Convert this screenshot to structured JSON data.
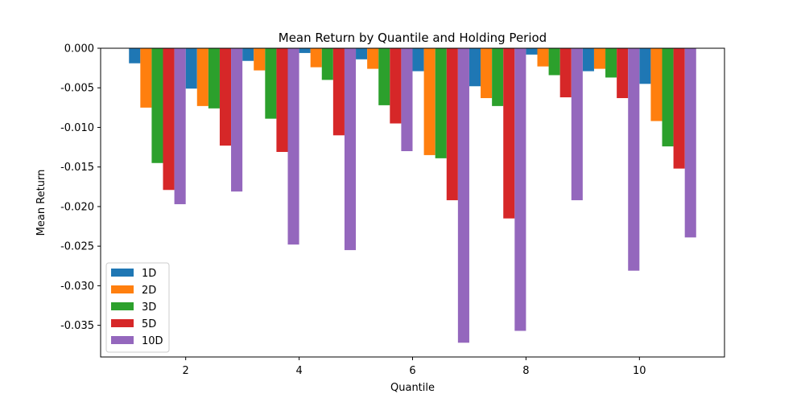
{
  "chart_data": {
    "type": "bar",
    "title": "Mean Return by Quantile and Holding Period",
    "xlabel": "Quantile",
    "ylabel": "Mean Return",
    "categories": [
      1,
      2,
      3,
      4,
      5,
      6,
      7,
      8,
      9,
      10
    ],
    "xlim": [
      0.5,
      11.5
    ],
    "ylim": [
      -0.039,
      0.0
    ],
    "xticks": [
      {
        "value": 2,
        "label": "2"
      },
      {
        "value": 4,
        "label": "4"
      },
      {
        "value": 6,
        "label": "6"
      },
      {
        "value": 8,
        "label": "8"
      },
      {
        "value": 10,
        "label": "10"
      }
    ],
    "yticks": [
      {
        "value": 0.0,
        "label": "0.000"
      },
      {
        "value": -0.005,
        "label": "-0.005"
      },
      {
        "value": -0.01,
        "label": "-0.010"
      },
      {
        "value": -0.015,
        "label": "-0.015"
      },
      {
        "value": -0.02,
        "label": "-0.020"
      },
      {
        "value": -0.025,
        "label": "-0.025"
      },
      {
        "value": -0.03,
        "label": "-0.030"
      },
      {
        "value": -0.035,
        "label": "-0.035"
      }
    ],
    "grid": false,
    "legend_position": "lower-left",
    "series": [
      {
        "name": "1D",
        "color": "#1f77b4",
        "values": [
          -0.0019,
          -0.0051,
          -0.0016,
          -0.0006,
          -0.0014,
          -0.0029,
          -0.0048,
          -0.0008,
          -0.0029,
          -0.0045
        ]
      },
      {
        "name": "2D",
        "color": "#ff7f0e",
        "values": [
          -0.0075,
          -0.0073,
          -0.0028,
          -0.0024,
          -0.0026,
          -0.0135,
          -0.0063,
          -0.0023,
          -0.0026,
          -0.0092
        ]
      },
      {
        "name": "3D",
        "color": "#2ca02c",
        "values": [
          -0.0145,
          -0.0076,
          -0.0089,
          -0.004,
          -0.0072,
          -0.0139,
          -0.0073,
          -0.0034,
          -0.0037,
          -0.0124
        ]
      },
      {
        "name": "5D",
        "color": "#d62728",
        "values": [
          -0.0179,
          -0.0123,
          -0.0131,
          -0.011,
          -0.0095,
          -0.0192,
          -0.0215,
          -0.0062,
          -0.0063,
          -0.0152
        ]
      },
      {
        "name": "10D",
        "color": "#9467bd",
        "values": [
          -0.0197,
          -0.0181,
          -0.0248,
          -0.0255,
          -0.013,
          -0.0372,
          -0.0357,
          -0.0192,
          -0.0281,
          -0.0239
        ]
      }
    ]
  }
}
